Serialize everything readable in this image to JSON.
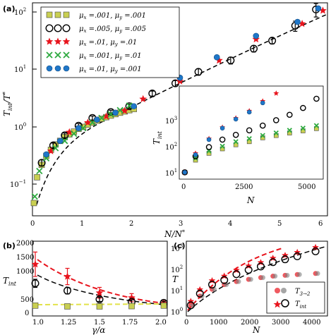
{
  "figure": {
    "panel_labels": {
      "a": "(a)",
      "b": "(b)",
      "c": "(c)"
    }
  },
  "colors": {
    "yellow": "#c9cf52",
    "black": "#000000",
    "red": "#e8141d",
    "green": "#2da93f",
    "blue": "#1f77c9",
    "grey": "#7f7f7f"
  },
  "chart_data": [
    {
      "id": "a",
      "type": "scatter",
      "xlabel": "N/N*",
      "ylabel": "T_int/T*",
      "xlim": [
        0,
        6.4
      ],
      "ylim": [
        0.03,
        150
      ],
      "yscale": "log",
      "xticks": [
        "0",
        "1",
        "2",
        "3",
        "4",
        "5",
        "6"
      ],
      "yticks": [
        "10^-1",
        "10^0",
        "10^1",
        "10^2"
      ],
      "legend_position": "top-left",
      "series": [
        {
          "name": "μx = .001, μy = .001",
          "marker": "square",
          "color": "yellow",
          "x": [
            0.03,
            0.1,
            0.2,
            0.3,
            0.4,
            0.5,
            0.6,
            0.7,
            0.8,
            0.9,
            1.0,
            1.1,
            1.2,
            1.3,
            1.4,
            1.5,
            1.6,
            1.7,
            1.8,
            1.9,
            2.0,
            2.1,
            2.2
          ],
          "y": [
            0.05,
            0.14,
            0.23,
            0.33,
            0.42,
            0.52,
            0.6,
            0.7,
            0.78,
            0.87,
            0.97,
            1.05,
            1.15,
            1.25,
            1.35,
            1.45,
            1.55,
            1.65,
            1.75,
            1.85,
            1.95,
            2.05,
            2.15
          ]
        },
        {
          "name": "μx = .005, μy = .005",
          "marker": "circle-open",
          "color": "black",
          "x": [
            0.2,
            0.45,
            0.7,
            1.0,
            1.3,
            1.7,
            2.1,
            2.6,
            3.1,
            3.6,
            4.3,
            4.8,
            5.2,
            5.7,
            6.15
          ],
          "y": [
            0.25,
            0.5,
            0.75,
            1.1,
            1.5,
            1.9,
            2.4,
            4.0,
            6.0,
            9.5,
            15,
            24,
            33,
            60,
            115
          ],
          "err": [
            0.03,
            0.05,
            0.07,
            0.1,
            0.12,
            0.15,
            0.2,
            0.4,
            0.7,
            1.2,
            2,
            3,
            4,
            12,
            30
          ]
        },
        {
          "name": "μx = .01, μy = .01",
          "marker": "star",
          "color": "red",
          "x": [
            0.4,
            0.8,
            1.2,
            1.6,
            2.0,
            2.4,
            3.2,
            4.05,
            4.85,
            5.85,
            6.3
          ],
          "y": [
            0.4,
            0.85,
            1.25,
            1.6,
            2.0,
            3.2,
            6.5,
            15,
            35,
            65,
            110
          ]
        },
        {
          "name": "μx = .001, μy = .01",
          "marker": "x",
          "color": "green",
          "x": [
            0.05,
            0.15,
            0.3,
            0.5,
            0.7,
            0.9,
            1.1,
            1.3,
            1.5,
            1.7,
            1.9,
            2.1
          ],
          "y": [
            0.065,
            0.18,
            0.3,
            0.45,
            0.6,
            0.8,
            1.0,
            1.25,
            1.5,
            1.75,
            2.05,
            2.45
          ]
        },
        {
          "name": "μx = .01, μy = .001",
          "marker": "circle-filled",
          "color": "blue",
          "x": [
            0.3,
            0.6,
            1.0,
            1.4,
            1.8,
            2.2,
            3.2,
            4.0,
            4.85,
            5.75,
            6.2
          ],
          "y": [
            0.35,
            0.6,
            1.0,
            1.4,
            1.85,
            2.4,
            7.5,
            17,
            40,
            70,
            120
          ]
        }
      ]
    },
    {
      "id": "a-inset",
      "type": "scatter",
      "xlabel": "N",
      "ylabel": "T_int",
      "xlim": [
        0,
        5200
      ],
      "ylim": [
        8,
        7000
      ],
      "yscale": "log",
      "xticks": [
        "0",
        "2500",
        "5000"
      ],
      "yticks": [
        "10^1",
        "10^2",
        "10^3"
      ],
      "series": [
        {
          "marker": "square",
          "color": "yellow",
          "x": [
            100,
            500,
            1000,
            1500,
            2000,
            2500,
            3000,
            3500,
            4000,
            4500,
            5000
          ],
          "y": [
            12,
            30,
            50,
            70,
            95,
            120,
            160,
            190,
            230,
            270,
            320
          ]
        },
        {
          "marker": "x",
          "color": "green",
          "x": [
            100,
            500,
            1000,
            1500,
            2000,
            2500,
            3000,
            3500,
            4000,
            4500,
            5000
          ],
          "y": [
            12,
            35,
            60,
            85,
            120,
            150,
            190,
            230,
            280,
            330,
            400
          ]
        },
        {
          "marker": "circle-open",
          "color": "black",
          "x": [
            100,
            500,
            1000,
            1500,
            2000,
            2500,
            3000,
            3500,
            4000,
            4500,
            5000
          ],
          "y": [
            12,
            40,
            80,
            140,
            200,
            280,
            400,
            600,
            900,
            1500,
            3000
          ]
        },
        {
          "marker": "star",
          "color": "red",
          "x": [
            100,
            500,
            1000,
            1500,
            2000,
            2500,
            3000,
            3500
          ],
          "y": [
            12,
            50,
            150,
            350,
            700,
            1200,
            2500,
            4500
          ]
        },
        {
          "marker": "circle-filled",
          "color": "blue",
          "x": [
            100,
            500,
            1000,
            1500,
            2000,
            2500,
            3000
          ],
          "y": [
            12,
            45,
            140,
            330,
            650,
            1100,
            2200
          ]
        }
      ]
    },
    {
      "id": "b",
      "type": "scatter",
      "xlabel": "γ/α",
      "ylabel": "T_int",
      "xlim": [
        0.95,
        2.05
      ],
      "ylim": [
        0,
        2700
      ],
      "xticks": [
        "1.0",
        "1.25",
        "1.5",
        "1.75",
        "2.0"
      ],
      "yticks": [
        "0",
        "500",
        "1000",
        "1500",
        "2000"
      ],
      "series": [
        {
          "marker": "star",
          "color": "red",
          "x": [
            1.0,
            1.25,
            1.5,
            1.75,
            2.0
          ],
          "y": [
            1850,
            1400,
            800,
            620,
            420
          ],
          "err": [
            450,
            300,
            200,
            150,
            80
          ]
        },
        {
          "marker": "circle-open",
          "color": "black",
          "x": [
            1.0,
            1.25,
            1.5,
            1.75,
            2.0
          ],
          "y": [
            1150,
            880,
            560,
            470,
            430
          ],
          "err": [
            150,
            120,
            80,
            70,
            60
          ]
        },
        {
          "marker": "square",
          "color": "yellow",
          "x": [
            1.0,
            1.25,
            1.5,
            1.75,
            2.0
          ],
          "y": [
            330,
            300,
            300,
            310,
            330
          ]
        }
      ]
    },
    {
      "id": "c",
      "type": "scatter",
      "xlabel": "N",
      "ylabel": "T",
      "xlim": [
        0,
        4500
      ],
      "ylim": [
        1,
        6000
      ],
      "yscale": "log",
      "xticks": [
        "0",
        "1000",
        "2000",
        "3000",
        "4000"
      ],
      "yticks": [
        "10^0",
        "10^1",
        "10^2",
        "10^3"
      ],
      "legend_position": "bottom-right",
      "series": [
        {
          "name": "T_3→2",
          "marker": "circle-filled",
          "color": "red-grey",
          "x": [
            100,
            400,
            800,
            1200,
            1600,
            2000,
            2400,
            2800,
            3200,
            3600,
            4200
          ],
          "y": [
            3,
            9,
            20,
            35,
            50,
            65,
            80,
            95,
            105,
            115,
            130
          ]
        },
        {
          "name": "T_int",
          "marker": "star-circle",
          "color": "red-black",
          "x": [
            100,
            400,
            800,
            1200,
            1600,
            2000,
            2400,
            2800,
            3200,
            3600,
            4200
          ],
          "y": [
            3,
            12,
            35,
            60,
            120,
            200,
            300,
            500,
            700,
            1000,
            1800
          ]
        }
      ]
    }
  ]
}
